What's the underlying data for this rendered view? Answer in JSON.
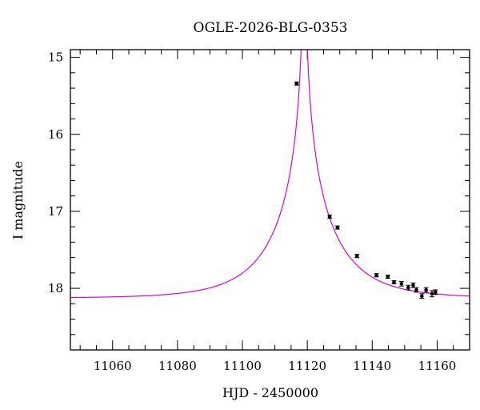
{
  "chart_data": {
    "type": "scatter",
    "title": "OGLE-2026-BLG-0353",
    "xlabel": "HJD - 2450000",
    "ylabel": "I magnitude",
    "xlim": [
      11047,
      11170
    ],
    "ylim": [
      18.8,
      14.9
    ],
    "y_inverted": true,
    "x_ticks": [
      11060,
      11080,
      11100,
      11120,
      11140,
      11160
    ],
    "x_tick_labels": [
      "11060",
      "11080",
      "11100",
      "11120",
      "11140",
      "11160"
    ],
    "y_ticks": [
      15,
      16,
      17,
      18
    ],
    "y_tick_labels": [
      "15",
      "16",
      "17",
      "18"
    ],
    "grid": false,
    "series": [
      {
        "kind": "points",
        "marker_color": "#000000",
        "points": [
          {
            "x": 11116.7,
            "y": 15.34,
            "err": 0.02
          },
          {
            "x": 11126.9,
            "y": 17.07,
            "err": 0.02
          },
          {
            "x": 11129.3,
            "y": 17.21,
            "err": 0.02
          },
          {
            "x": 11135.3,
            "y": 17.58,
            "err": 0.02
          },
          {
            "x": 11141.3,
            "y": 17.83,
            "err": 0.02
          },
          {
            "x": 11144.8,
            "y": 17.85,
            "err": 0.02
          },
          {
            "x": 11146.7,
            "y": 17.92,
            "err": 0.02
          },
          {
            "x": 11149.0,
            "y": 17.94,
            "err": 0.03
          },
          {
            "x": 11151.1,
            "y": 17.99,
            "err": 0.03
          },
          {
            "x": 11152.6,
            "y": 17.96,
            "err": 0.03
          },
          {
            "x": 11153.6,
            "y": 18.02,
            "err": 0.03
          },
          {
            "x": 11155.3,
            "y": 18.1,
            "err": 0.03
          },
          {
            "x": 11156.6,
            "y": 18.02,
            "err": 0.03
          },
          {
            "x": 11158.4,
            "y": 18.07,
            "err": 0.04
          },
          {
            "x": 11159.5,
            "y": 18.05,
            "err": 0.03
          }
        ]
      },
      {
        "kind": "model",
        "line_color": "#e000e0",
        "model": {
          "type": "point-lens",
          "t0": 11119.05,
          "tE": 19.3,
          "u0": 0.0075,
          "baseline_mag": 18.128
        }
      }
    ]
  }
}
